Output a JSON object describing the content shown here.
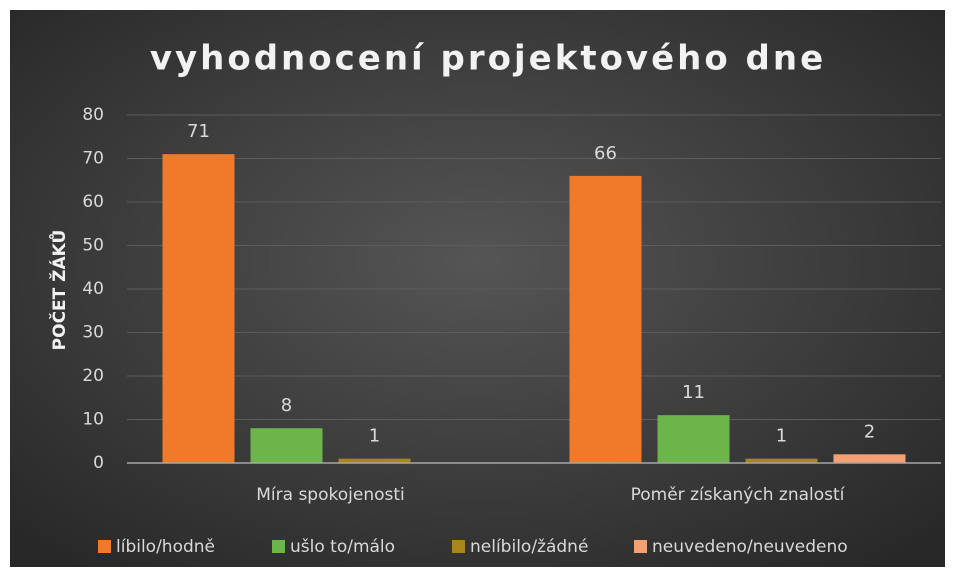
{
  "chart_data": {
    "type": "bar",
    "title": "vyhodnocení projektového dne",
    "ylabel": "POČET ŽÁKŮ",
    "categories": [
      "Míra spokojenosti",
      "Poměr získaných znalostí"
    ],
    "series": [
      {
        "name": "líbilo/hodně",
        "color": "#f07a2a",
        "values": [
          71,
          66
        ]
      },
      {
        "name": "ušlo to/málo",
        "color": "#6cb54a",
        "values": [
          8,
          11
        ]
      },
      {
        "name": "nelíbilo/žádné",
        "color": "#a8861c",
        "values": [
          1,
          1
        ]
      },
      {
        "name": "neuvedeno/neuvedeno",
        "color": "#f4a072",
        "values": [
          null,
          2
        ]
      }
    ],
    "ylim": [
      0,
      80
    ],
    "yticks": [
      0,
      10,
      20,
      30,
      40,
      50,
      60,
      70,
      80
    ],
    "grid": true,
    "legend": "bottom"
  }
}
